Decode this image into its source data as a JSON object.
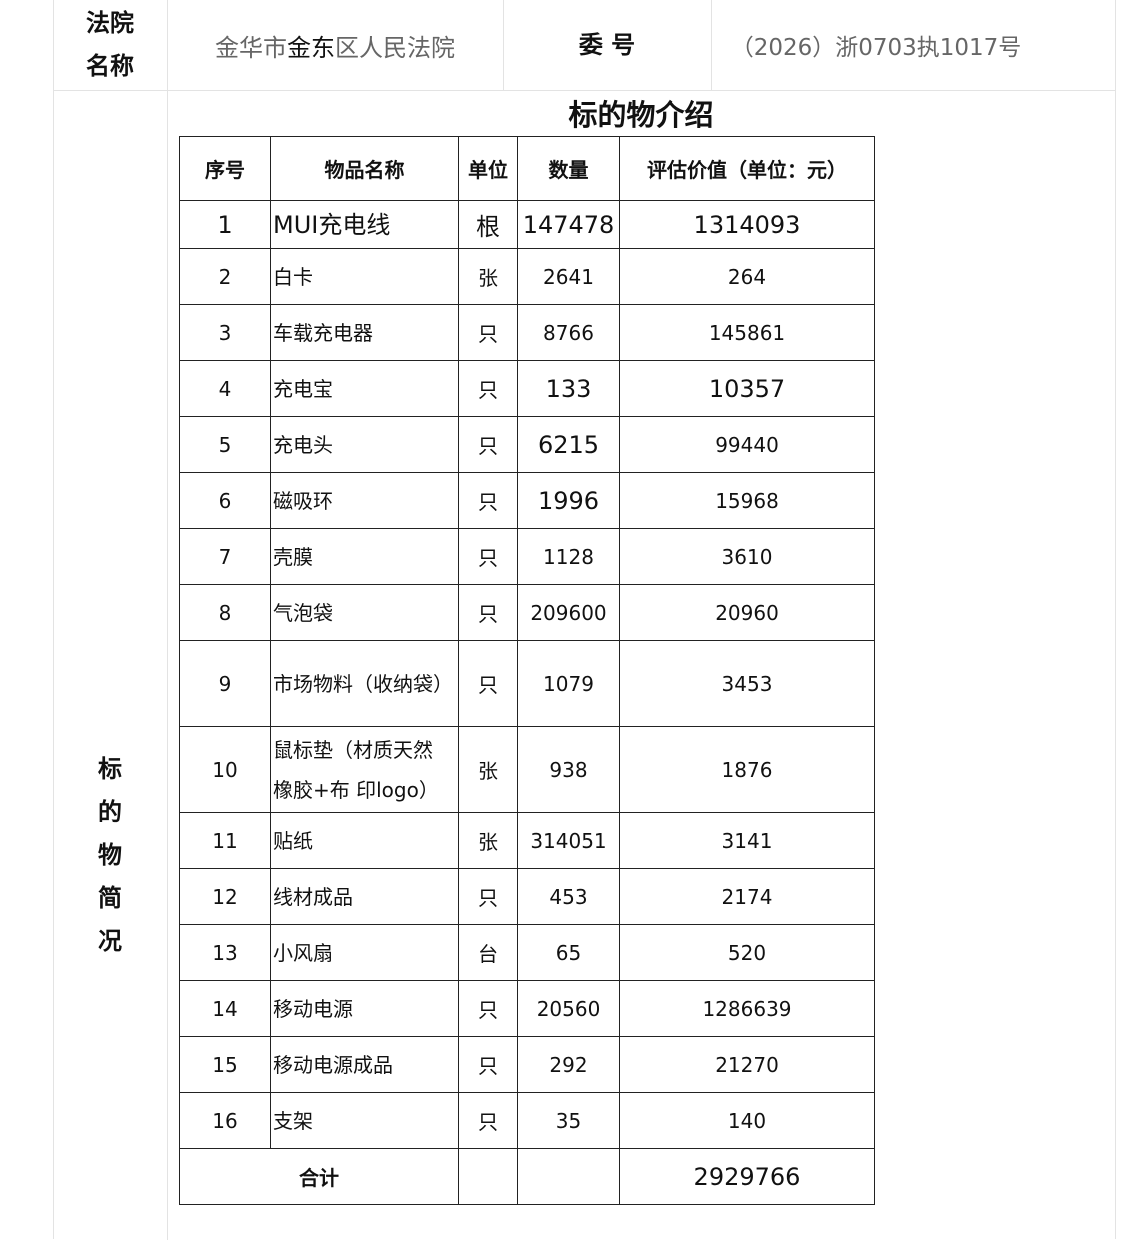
{
  "header": {
    "court_label": "法院名称",
    "court_label_lines": [
      "法院",
      "名称"
    ],
    "court_prefix": "金华市",
    "court_bold": "金东",
    "court_suffix": "区人民法院",
    "case_label": "委 号",
    "case_number": "（2026）浙0703执1017号"
  },
  "section": {
    "side_label_chars": [
      "标",
      "的",
      "物",
      "简",
      "况"
    ],
    "title": "标的物介绍"
  },
  "table": {
    "columns": [
      "序号",
      "物品名称",
      "单位",
      "数量",
      "评估价值（单位：元）"
    ],
    "rows": [
      {
        "no": "1",
        "name": "MUI充电线",
        "unit": "根",
        "qty": "147478",
        "value": "1314093"
      },
      {
        "no": "2",
        "name": "白卡",
        "unit": "张",
        "qty": "2641",
        "value": "264"
      },
      {
        "no": "3",
        "name": "车载充电器",
        "unit": "只",
        "qty": "8766",
        "value": "145861"
      },
      {
        "no": "4",
        "name": "充电宝",
        "unit": "只",
        "qty": "133",
        "value": "10357"
      },
      {
        "no": "5",
        "name": "充电头",
        "unit": "只",
        "qty": "6215",
        "value": "99440"
      },
      {
        "no": "6",
        "name": "磁吸环",
        "unit": "只",
        "qty": "1996",
        "value": "15968"
      },
      {
        "no": "7",
        "name": "壳膜",
        "unit": "只",
        "qty": "1128",
        "value": "3610"
      },
      {
        "no": "8",
        "name": "气泡袋",
        "unit": "只",
        "qty": "209600",
        "value": "20960"
      },
      {
        "no": "9",
        "name": "市场物料（收纳袋）",
        "unit": "只",
        "qty": "1079",
        "value": "3453"
      },
      {
        "no": "10",
        "name": "鼠标垫（材质天然橡胶+布 印logo）",
        "unit": "张",
        "qty": "938",
        "value": "1876"
      },
      {
        "no": "11",
        "name": "贴纸",
        "unit": "张",
        "qty": "314051",
        "value": "3141"
      },
      {
        "no": "12",
        "name": "线材成品",
        "unit": "只",
        "qty": "453",
        "value": "2174"
      },
      {
        "no": "13",
        "name": "小风扇",
        "unit": "台",
        "qty": "65",
        "value": "520"
      },
      {
        "no": "14",
        "name": "移动电源",
        "unit": "只",
        "qty": "20560",
        "value": "1286639"
      },
      {
        "no": "15",
        "name": "移动电源成品",
        "unit": "只",
        "qty": "292",
        "value": "21270"
      },
      {
        "no": "16",
        "name": "支架",
        "unit": "只",
        "qty": "35",
        "value": "140"
      }
    ],
    "total_label": "合计",
    "total_value": "2929766"
  }
}
